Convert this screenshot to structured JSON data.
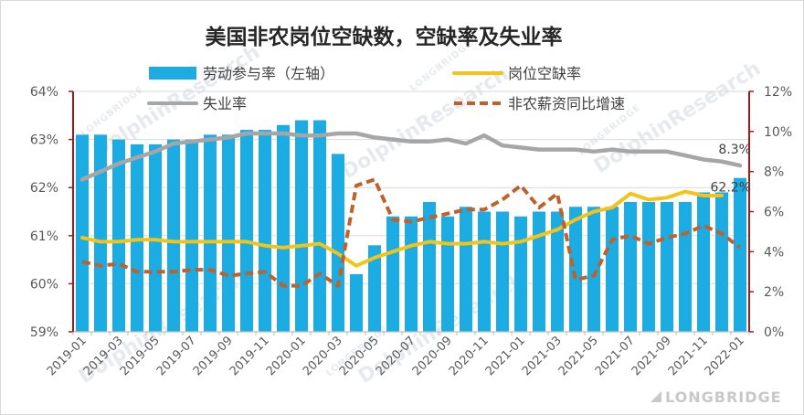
{
  "watermarks": {
    "brand": "LONGBRIDGE",
    "research": "DolphinResearch"
  },
  "chart_data": {
    "type": "bar",
    "title": "美国非农岗位空缺数，空缺率及失业率",
    "x": [
      "2019-01",
      "2019-02",
      "2019-03",
      "2019-04",
      "2019-05",
      "2019-06",
      "2019-07",
      "2019-08",
      "2019-09",
      "2019-10",
      "2019-11",
      "2019-12",
      "2020-01",
      "2020-02",
      "2020-03",
      "2020-04",
      "2020-05",
      "2020-06",
      "2020-07",
      "2020-08",
      "2020-09",
      "2020-10",
      "2020-11",
      "2020-12",
      "2021-01",
      "2021-02",
      "2021-03",
      "2021-04",
      "2021-05",
      "2021-06",
      "2021-07",
      "2021-08",
      "2021-09",
      "2021-10",
      "2021-11",
      "2021-12",
      "2022-01"
    ],
    "ylim_left": [
      59,
      64
    ],
    "yticks_left": [
      "59%",
      "60%",
      "61%",
      "62%",
      "63%",
      "64%"
    ],
    "ylim_right": [
      0,
      12
    ],
    "yticks_right": [
      "0%",
      "2%",
      "4%",
      "6%",
      "8%",
      "10%",
      "12%"
    ],
    "grid": true,
    "legend": "top",
    "axis_color": "#9E1B1B",
    "series": [
      {
        "name": "劳动参与率（左轴）",
        "type": "bar",
        "axis": "left",
        "color": "#1AACE3",
        "end_label": "62.2%",
        "values": [
          63.1,
          63.1,
          63.0,
          62.9,
          62.9,
          63.0,
          63.0,
          63.1,
          63.1,
          63.2,
          63.2,
          63.3,
          63.4,
          63.4,
          62.7,
          60.2,
          60.8,
          61.4,
          61.4,
          61.7,
          61.4,
          61.6,
          61.5,
          61.5,
          61.4,
          61.5,
          61.5,
          61.6,
          61.6,
          61.6,
          61.7,
          61.7,
          61.7,
          61.7,
          61.9,
          61.9,
          62.2
        ]
      },
      {
        "name": "岗位空缺率",
        "type": "line",
        "axis": "right",
        "color": "#F2C318",
        "values": [
          4.7,
          4.5,
          4.5,
          4.6,
          4.6,
          4.5,
          4.5,
          4.5,
          4.5,
          4.5,
          4.3,
          4.2,
          4.3,
          4.4,
          3.9,
          3.3,
          3.7,
          4.0,
          4.3,
          4.5,
          4.4,
          4.4,
          4.5,
          4.4,
          4.5,
          4.8,
          5.1,
          5.6,
          6.0,
          6.2,
          6.9,
          6.6,
          6.7,
          7.0,
          6.8,
          6.8,
          null
        ]
      },
      {
        "name": "失业率",
        "type": "line",
        "axis": "right",
        "color": "#A6A6A6",
        "end_label": "8.3%",
        "values": [
          7.6,
          8.0,
          8.4,
          8.7,
          9.0,
          9.4,
          9.5,
          9.6,
          9.7,
          9.9,
          9.9,
          9.9,
          9.8,
          9.8,
          9.9,
          9.9,
          9.7,
          9.6,
          9.5,
          9.5,
          9.6,
          9.4,
          9.8,
          9.3,
          9.2,
          9.1,
          9.1,
          9.1,
          9.0,
          9.1,
          9.0,
          9.0,
          9.0,
          8.8,
          8.6,
          8.5,
          8.3
        ]
      },
      {
        "name": "非农薪资同比增速",
        "type": "line",
        "axis": "right",
        "color": "#C0602A",
        "dashed": true,
        "values": [
          3.5,
          3.3,
          3.4,
          3.0,
          3.0,
          3.0,
          3.1,
          3.1,
          2.8,
          2.9,
          3.0,
          2.3,
          2.3,
          2.9,
          2.3,
          7.3,
          7.6,
          5.6,
          5.5,
          5.7,
          5.9,
          6.1,
          6.1,
          6.6,
          7.3,
          6.2,
          6.9,
          2.6,
          2.8,
          4.6,
          4.8,
          4.4,
          4.7,
          4.9,
          5.3,
          4.9,
          4.2
        ]
      }
    ]
  }
}
